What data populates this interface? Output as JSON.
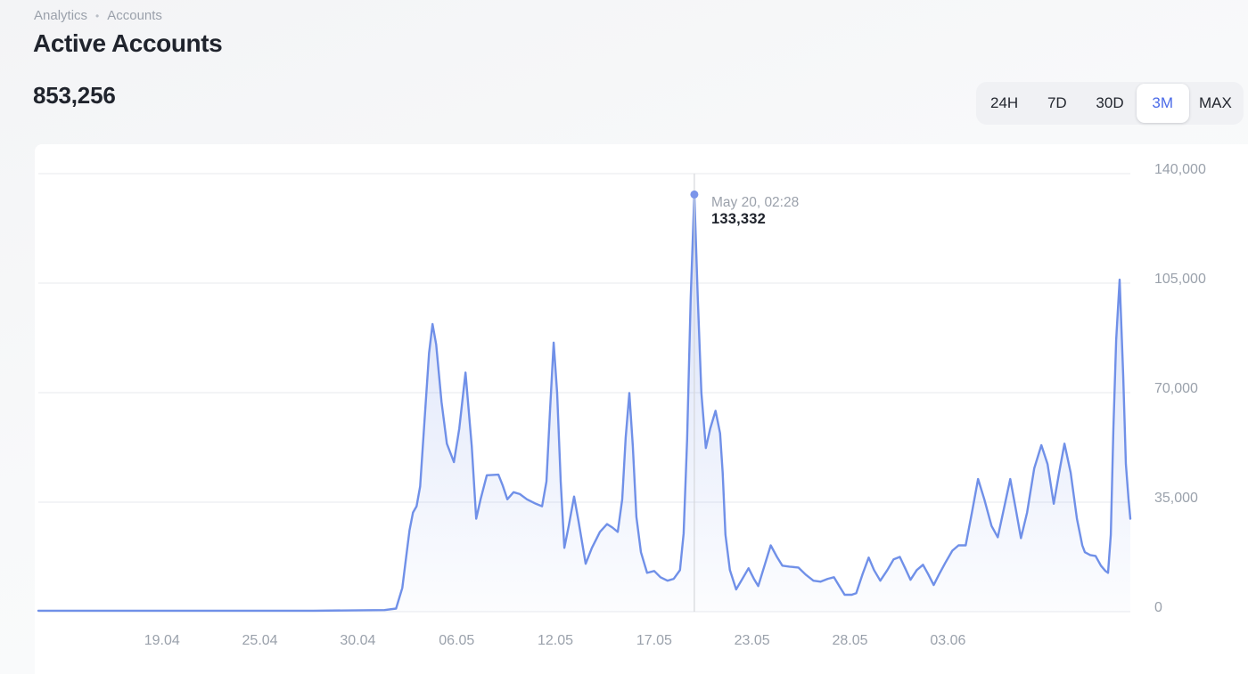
{
  "breadcrumb": {
    "items": [
      "Analytics",
      "Accounts"
    ],
    "separator": "•"
  },
  "header": {
    "title": "Active Accounts",
    "metric_value": "853,256"
  },
  "range_selector": {
    "options": [
      {
        "label": "24H"
      },
      {
        "label": "7D"
      },
      {
        "label": "30D"
      },
      {
        "label": "3M"
      },
      {
        "label": "MAX"
      }
    ],
    "selected": "3M"
  },
  "tooltip": {
    "date": "May 20, 02:28",
    "value": "133,332"
  },
  "colors": {
    "accent_blue": "#4a6ae8",
    "line_blue": "#7090e8",
    "dot_blue": "#7b95ea",
    "grid": "#f3f4f6",
    "crosshair": "#d5d7db",
    "text_primary": "#20242d",
    "text_secondary": "#9aa1ab",
    "card_bg": "#ffffff"
  },
  "chart_data": {
    "type": "area",
    "title": "Active Accounts",
    "ylabel": "",
    "xlabel": "",
    "ylim": [
      0,
      140000
    ],
    "grid": true,
    "legend": "none",
    "y_ticks": [
      {
        "label": "0",
        "value": 0
      },
      {
        "label": "35,000",
        "value": 35000
      },
      {
        "label": "70,000",
        "value": 70000
      },
      {
        "label": "105,000",
        "value": 105000
      },
      {
        "label": "140,000",
        "value": 140000
      }
    ],
    "x_ticks": [
      {
        "label": "19.04",
        "f": 0.1133
      },
      {
        "label": "25.04",
        "f": 0.2029
      },
      {
        "label": "30.04",
        "f": 0.2926
      },
      {
        "label": "06.05",
        "f": 0.3831
      },
      {
        "label": "12.05",
        "f": 0.4735
      },
      {
        "label": "17.05",
        "f": 0.564
      },
      {
        "label": "23.05",
        "f": 0.6536
      },
      {
        "label": "28.05",
        "f": 0.7433
      },
      {
        "label": "03.06",
        "f": 0.833
      }
    ],
    "marker": {
      "f": 0.6007,
      "value": 133332,
      "label_date": "May 20, 02:28",
      "label_value": "133,332"
    },
    "points": [
      [
        0.0,
        300
      ],
      [
        0.1296,
        300
      ],
      [
        0.2518,
        300
      ],
      [
        0.317,
        500
      ],
      [
        0.3276,
        1000
      ],
      [
        0.3333,
        7600
      ],
      [
        0.3374,
        19000
      ],
      [
        0.3399,
        26000
      ],
      [
        0.3431,
        31700
      ],
      [
        0.3464,
        33700
      ],
      [
        0.3496,
        40000
      ],
      [
        0.3537,
        61400
      ],
      [
        0.3578,
        82600
      ],
      [
        0.361,
        91900
      ],
      [
        0.3643,
        85400
      ],
      [
        0.3692,
        67000
      ],
      [
        0.3741,
        53700
      ],
      [
        0.3806,
        47800
      ],
      [
        0.3855,
        58500
      ],
      [
        0.3912,
        76400
      ],
      [
        0.3969,
        52900
      ],
      [
        0.401,
        29700
      ],
      [
        0.405,
        35900
      ],
      [
        0.4107,
        43600
      ],
      [
        0.4213,
        43800
      ],
      [
        0.4254,
        40200
      ],
      [
        0.4295,
        35900
      ],
      [
        0.4352,
        38200
      ],
      [
        0.4409,
        37600
      ],
      [
        0.4474,
        35900
      ],
      [
        0.4556,
        34500
      ],
      [
        0.4613,
        33700
      ],
      [
        0.4653,
        41600
      ],
      [
        0.4686,
        64200
      ],
      [
        0.4719,
        86000
      ],
      [
        0.4751,
        69900
      ],
      [
        0.4784,
        41600
      ],
      [
        0.4817,
        20400
      ],
      [
        0.4857,
        27400
      ],
      [
        0.4906,
        36800
      ],
      [
        0.4947,
        28900
      ],
      [
        0.5012,
        15300
      ],
      [
        0.5069,
        20400
      ],
      [
        0.5143,
        25500
      ],
      [
        0.5208,
        28000
      ],
      [
        0.5257,
        26900
      ],
      [
        0.5306,
        25500
      ],
      [
        0.5347,
        35900
      ],
      [
        0.5379,
        55700
      ],
      [
        0.5412,
        69900
      ],
      [
        0.5444,
        52900
      ],
      [
        0.5477,
        30300
      ],
      [
        0.5518,
        19000
      ],
      [
        0.5575,
        12400
      ],
      [
        0.564,
        13000
      ],
      [
        0.5697,
        11000
      ],
      [
        0.5762,
        9900
      ],
      [
        0.5819,
        10500
      ],
      [
        0.5876,
        13300
      ],
      [
        0.5909,
        25000
      ],
      [
        0.5941,
        55000
      ],
      [
        0.5974,
        100000
      ],
      [
        0.6007,
        133332
      ],
      [
        0.6039,
        100000
      ],
      [
        0.6072,
        70000
      ],
      [
        0.6113,
        52300
      ],
      [
        0.6153,
        58500
      ],
      [
        0.6202,
        64200
      ],
      [
        0.6243,
        57000
      ],
      [
        0.6267,
        44400
      ],
      [
        0.6292,
        24600
      ],
      [
        0.6333,
        13300
      ],
      [
        0.639,
        7100
      ],
      [
        0.6447,
        10500
      ],
      [
        0.6504,
        13900
      ],
      [
        0.6553,
        10500
      ],
      [
        0.6593,
        8200
      ],
      [
        0.665,
        14700
      ],
      [
        0.6707,
        21200
      ],
      [
        0.6764,
        17500
      ],
      [
        0.6813,
        14700
      ],
      [
        0.6878,
        14400
      ],
      [
        0.696,
        14100
      ],
      [
        0.7025,
        11900
      ],
      [
        0.7098,
        9900
      ],
      [
        0.7164,
        9600
      ],
      [
        0.7229,
        10500
      ],
      [
        0.7286,
        11000
      ],
      [
        0.7335,
        8200
      ],
      [
        0.7384,
        5400
      ],
      [
        0.7449,
        5400
      ],
      [
        0.749,
        5900
      ],
      [
        0.7547,
        11900
      ],
      [
        0.7604,
        17300
      ],
      [
        0.7653,
        13300
      ],
      [
        0.771,
        9900
      ],
      [
        0.7775,
        13300
      ],
      [
        0.7832,
        16700
      ],
      [
        0.7889,
        17500
      ],
      [
        0.7938,
        13900
      ],
      [
        0.7987,
        10200
      ],
      [
        0.8044,
        13300
      ],
      [
        0.8101,
        15000
      ],
      [
        0.815,
        11900
      ],
      [
        0.8199,
        8500
      ],
      [
        0.8248,
        11900
      ],
      [
        0.8305,
        15600
      ],
      [
        0.837,
        19500
      ],
      [
        0.8427,
        21200
      ],
      [
        0.8492,
        21200
      ],
      [
        0.8549,
        31700
      ],
      [
        0.8606,
        42400
      ],
      [
        0.8663,
        35900
      ],
      [
        0.8729,
        27400
      ],
      [
        0.8786,
        23800
      ],
      [
        0.8843,
        33100
      ],
      [
        0.89,
        42400
      ],
      [
        0.8949,
        33100
      ],
      [
        0.8998,
        23500
      ],
      [
        0.9055,
        31700
      ],
      [
        0.912,
        45800
      ],
      [
        0.9185,
        53200
      ],
      [
        0.9242,
        47200
      ],
      [
        0.9299,
        34500
      ],
      [
        0.9348,
        44400
      ],
      [
        0.9397,
        53700
      ],
      [
        0.9454,
        44400
      ],
      [
        0.9511,
        29700
      ],
      [
        0.956,
        21200
      ],
      [
        0.9584,
        19000
      ],
      [
        0.9633,
        18100
      ],
      [
        0.9682,
        17800
      ],
      [
        0.9731,
        14700
      ],
      [
        0.9772,
        13000
      ],
      [
        0.9796,
        12400
      ],
      [
        0.9821,
        24600
      ],
      [
        0.9845,
        58500
      ],
      [
        0.987,
        86800
      ],
      [
        0.9902,
        106100
      ],
      [
        0.9935,
        75500
      ],
      [
        0.9959,
        47200
      ],
      [
        0.9984,
        35900
      ],
      [
        1.0,
        29700
      ]
    ]
  }
}
